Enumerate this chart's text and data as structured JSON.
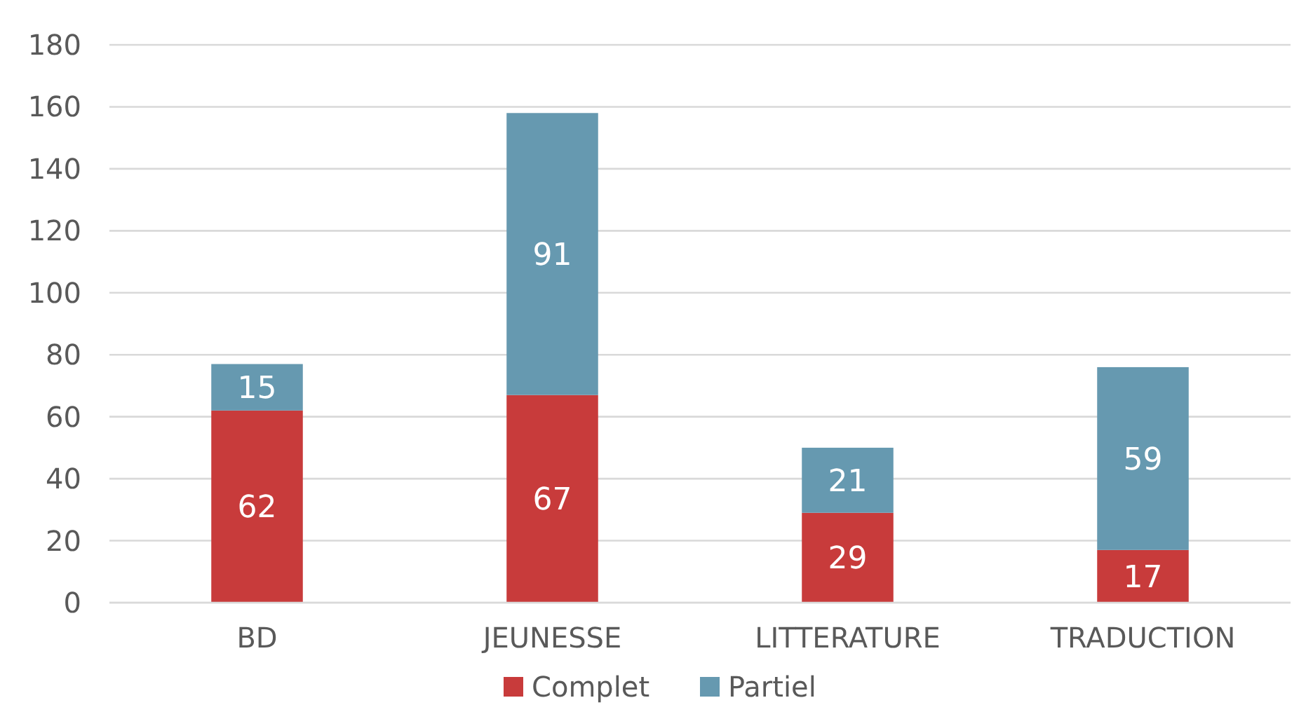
{
  "chart_data": {
    "type": "bar",
    "stacked": true,
    "categories": [
      "BD",
      "JEUNESSE",
      "LITTERATURE",
      "TRADUCTION"
    ],
    "series": [
      {
        "name": "Complet",
        "color": "#c83b3b",
        "values": [
          62,
          67,
          29,
          17
        ]
      },
      {
        "name": "Partiel",
        "color": "#6699b0",
        "values": [
          15,
          91,
          21,
          59
        ]
      }
    ],
    "ylim": [
      0,
      180
    ],
    "yticks": [
      0,
      20,
      40,
      60,
      80,
      100,
      120,
      140,
      160,
      180
    ],
    "grid": "y",
    "legend": "bottom",
    "data_labels": true
  }
}
